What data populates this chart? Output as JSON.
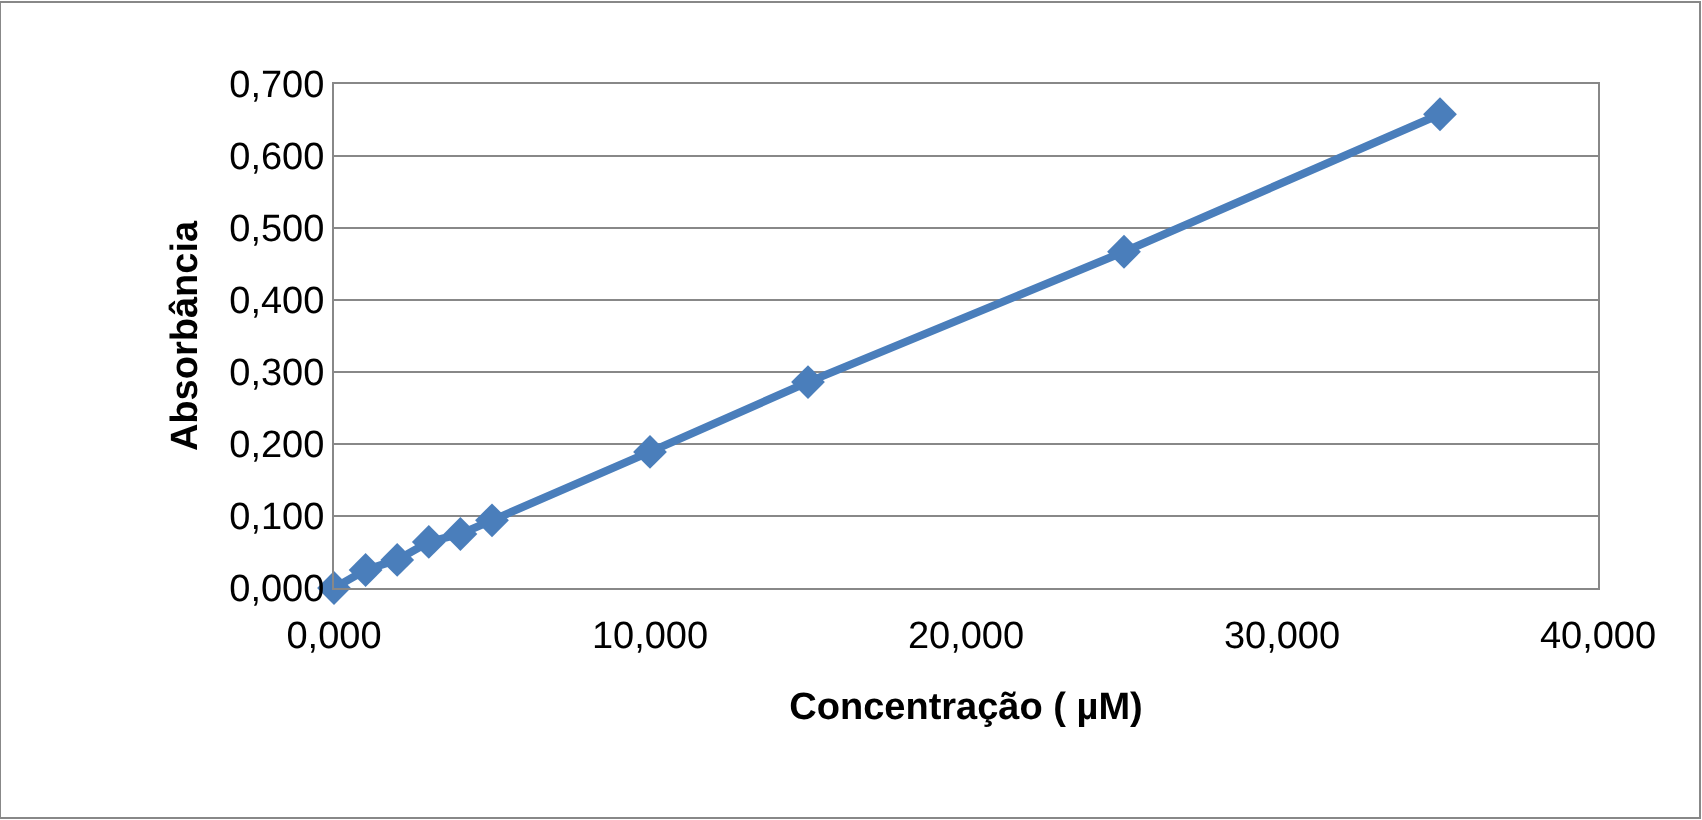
{
  "chart_data": {
    "type": "line",
    "xlabel": "Concentração ( µM)",
    "ylabel": "Absorbância",
    "x": [
      0,
      1,
      2,
      3,
      4,
      5,
      10,
      15,
      25,
      35
    ],
    "series": [
      {
        "color": "#4a7ebb",
        "values": [
          0,
          0.025,
          0.039,
          0.064,
          0.075,
          0.094,
          0.189,
          0.286,
          0.467,
          0.658
        ]
      }
    ],
    "xlim": [
      0,
      40
    ],
    "ylim": [
      0,
      0.7
    ],
    "xticks": [
      {
        "value": 0,
        "label": "0,000"
      },
      {
        "value": 10,
        "label": "10,000"
      },
      {
        "value": 20,
        "label": "20,000"
      },
      {
        "value": 30,
        "label": "30,000"
      },
      {
        "value": 40,
        "label": "40,000"
      }
    ],
    "yticks": [
      {
        "value": 0,
        "label": "0,000"
      },
      {
        "value": 0.1,
        "label": "0,100"
      },
      {
        "value": 0.2,
        "label": "0,200"
      },
      {
        "value": 0.3,
        "label": "0,300"
      },
      {
        "value": 0.4,
        "label": "0,400"
      },
      {
        "value": 0.5,
        "label": "0,500"
      },
      {
        "value": 0.6,
        "label": "0,600"
      },
      {
        "value": 0.7,
        "label": "0,700"
      }
    ],
    "grid": "y",
    "marker": "diamond",
    "line_style": "solid"
  }
}
